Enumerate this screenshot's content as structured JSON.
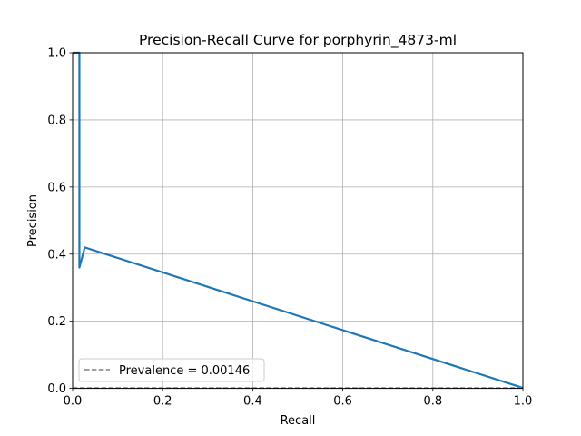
{
  "chart_data": {
    "type": "line",
    "title": "Precision-Recall Curve for porphyrin_4873-ml",
    "xlabel": "Recall",
    "ylabel": "Precision",
    "xlim": [
      0,
      1
    ],
    "ylim": [
      0,
      1
    ],
    "grid": true,
    "x_ticks": [
      "0.0",
      "0.2",
      "0.4",
      "0.6",
      "0.8",
      "1.0"
    ],
    "y_ticks": [
      "0.0",
      "0.2",
      "0.4",
      "0.6",
      "0.8",
      "1.0"
    ],
    "series": [
      {
        "color": "#1f77b4",
        "style": "solid",
        "x": [
          0.0,
          0.015,
          0.015,
          0.027,
          1.0
        ],
        "y": [
          1.0,
          1.0,
          0.36,
          0.42,
          0.0015
        ]
      },
      {
        "name": "Prevalence = 0.00146",
        "color": "#808080",
        "style": "dashed",
        "x": [
          0,
          1
        ],
        "y": [
          0.00146,
          0.00146
        ]
      }
    ],
    "legend": {
      "placement": "lower-left",
      "entries": [
        "Prevalence = 0.00146"
      ]
    }
  }
}
